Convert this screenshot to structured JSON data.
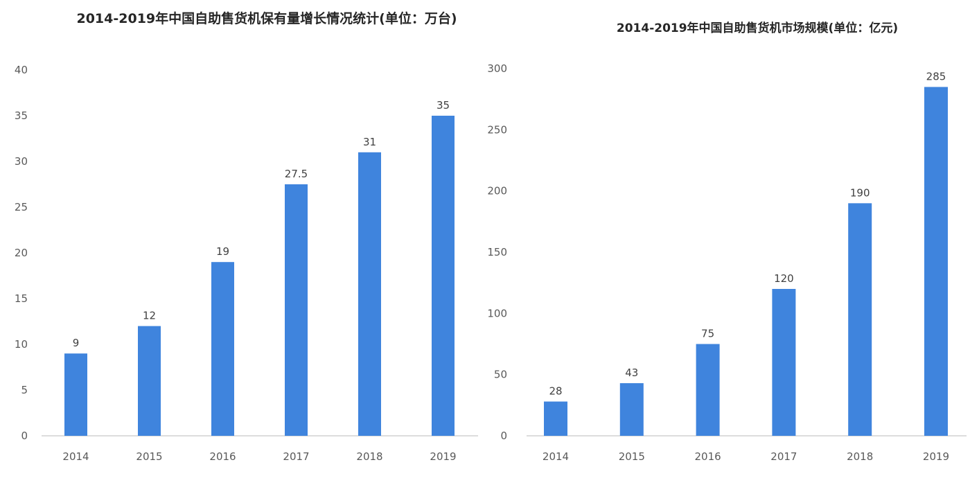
{
  "chart_data": [
    {
      "type": "bar",
      "title": "2014-2019年中国自助售货机保有量增长情况统计(单位：万台)",
      "categories": [
        "2014",
        "2015",
        "2016",
        "2017",
        "2018",
        "2019"
      ],
      "values": [
        9,
        12,
        19,
        27.5,
        31,
        35
      ],
      "data_labels": [
        "9",
        "12",
        "19",
        "27.5",
        "31",
        "35"
      ],
      "ylim": [
        0,
        40
      ],
      "yticks": [
        0,
        5,
        10,
        15,
        20,
        25,
        30,
        35,
        40
      ],
      "grid": false,
      "bar_color": "#3f84dd"
    },
    {
      "type": "bar",
      "title": "2014-2019年中国自助售货机市场规模(单位：亿元)",
      "categories": [
        "2014",
        "2015",
        "2016",
        "2017",
        "2018",
        "2019"
      ],
      "values": [
        28,
        43,
        75,
        120,
        190,
        285
      ],
      "data_labels": [
        "28",
        "43",
        "75",
        "120",
        "190",
        "285"
      ],
      "ylim": [
        0,
        300
      ],
      "yticks": [
        0,
        50,
        100,
        150,
        200,
        250,
        300
      ],
      "grid": false,
      "bar_color": "#3f84dd"
    }
  ]
}
